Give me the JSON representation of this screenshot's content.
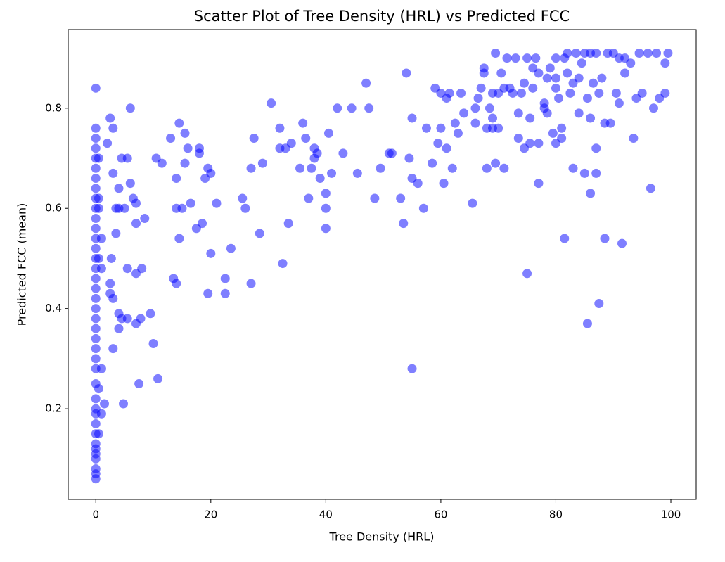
{
  "chart_data": {
    "type": "scatter",
    "title": "Scatter Plot of Tree Density (HRL) vs Predicted FCC",
    "x_label": "Tree Density (HRL)",
    "y_label": "Predicted FCC (mean)",
    "color": "#0000ff",
    "alpha": 0.5,
    "grid": false,
    "xlim": [
      -4.8,
      104.4
    ],
    "ylim": [
      0.019,
      0.957
    ],
    "xticks": [
      0,
      20,
      40,
      60,
      80,
      100
    ],
    "yticks": [
      0.2,
      0.4,
      0.6,
      0.8
    ],
    "x": [
      0,
      0,
      0,
      0,
      0,
      0,
      0,
      0,
      0,
      0,
      0,
      0,
      0,
      0,
      0,
      0,
      0,
      0,
      0,
      0,
      0,
      0,
      0,
      0,
      0,
      0,
      0,
      0,
      0,
      0,
      0,
      0,
      0,
      0,
      0,
      0,
      0,
      0,
      0,
      0.5,
      0.5,
      0.5,
      0.5,
      0.5,
      0.5,
      1.5,
      1,
      1,
      1,
      1,
      2,
      2.5,
      2.5,
      2.5,
      3,
      3,
      2.7,
      3,
      3,
      3.5,
      3.5,
      4,
      4,
      4,
      4.5,
      4.5,
      4,
      4.8,
      5,
      5.5,
      5.5,
      5.5,
      6,
      6,
      6.5,
      7,
      7,
      7,
      7,
      7.5,
      7.8,
      8,
      8.5,
      9.5,
      10,
      10.5,
      10.8,
      11.5,
      13,
      13.5,
      14,
      14,
      14.5,
      14,
      14.5,
      15,
      15.5,
      15.5,
      16,
      16.5,
      17.5,
      18,
      18,
      18.5,
      19,
      19.5,
      19.5,
      20,
      20,
      21,
      22.5,
      22.5,
      23.5,
      25.5,
      26,
      27,
      27,
      27.5,
      28.5,
      29,
      30.5,
      32,
      32,
      32.5,
      33,
      33.5,
      34,
      35.5,
      36,
      36.5,
      37,
      37.5,
      38,
      38,
      38.5,
      39,
      40,
      40,
      40,
      40.5,
      41,
      42,
      43,
      44.5,
      45.5,
      47,
      47.5,
      48.5,
      49.5,
      51,
      51.5,
      53,
      53.5,
      54,
      54.5,
      55,
      55,
      55,
      56,
      57,
      57.5,
      58.5,
      59,
      59.5,
      60,
      60,
      60.5,
      61,
      61,
      61.5,
      62,
      62.5,
      63,
      63.5,
      64,
      65.5,
      66,
      66,
      66.5,
      67,
      67.5,
      67.5,
      68,
      68,
      68.5,
      69,
      69,
      69,
      69.5,
      69.5,
      70,
      70,
      70.5,
      71,
      71,
      71.5,
      72,
      72.5,
      73,
      73.5,
      73.5,
      74,
      74.5,
      74.5,
      75,
      75,
      75.5,
      75.5,
      76,
      76,
      76.5,
      77,
      77,
      77,
      78,
      78,
      78.5,
      78.5,
      79,
      79.5,
      80,
      80,
      80,
      80,
      80.5,
      81,
      81,
      81.5,
      81.5,
      82,
      82,
      82.5,
      83,
      83,
      83.5,
      84,
      84,
      84.5,
      85,
      85,
      85.5,
      85.5,
      86,
      86,
      86,
      86.5,
      87,
      87,
      87,
      87.5,
      87.5,
      88,
      88.5,
      88.5,
      89,
      89.5,
      90,
      90.5,
      91,
      91,
      91.5,
      92,
      92,
      93,
      93.5,
      94,
      94.5,
      95,
      96,
      96.5,
      97,
      97.5,
      98,
      99,
      99,
      99.5
    ],
    "values": [
      0.06,
      0.07,
      0.08,
      0.1,
      0.11,
      0.12,
      0.13,
      0.15,
      0.17,
      0.19,
      0.2,
      0.22,
      0.25,
      0.28,
      0.3,
      0.32,
      0.34,
      0.36,
      0.38,
      0.4,
      0.42,
      0.44,
      0.46,
      0.48,
      0.5,
      0.52,
      0.54,
      0.56,
      0.58,
      0.6,
      0.62,
      0.64,
      0.66,
      0.68,
      0.7,
      0.72,
      0.74,
      0.76,
      0.84,
      0.24,
      0.5,
      0.6,
      0.15,
      0.62,
      0.7,
      0.21,
      0.28,
      0.48,
      0.54,
      0.19,
      0.73,
      0.43,
      0.45,
      0.78,
      0.76,
      0.42,
      0.5,
      0.67,
      0.32,
      0.55,
      0.6,
      0.6,
      0.36,
      0.39,
      0.38,
      0.7,
      0.64,
      0.21,
      0.6,
      0.7,
      0.48,
      0.38,
      0.8,
      0.65,
      0.62,
      0.57,
      0.47,
      0.37,
      0.61,
      0.25,
      0.38,
      0.48,
      0.58,
      0.39,
      0.33,
      0.7,
      0.26,
      0.69,
      0.74,
      0.46,
      0.45,
      0.66,
      0.77,
      0.6,
      0.54,
      0.6,
      0.69,
      0.75,
      0.72,
      0.61,
      0.56,
      0.72,
      0.71,
      0.57,
      0.66,
      0.43,
      0.68,
      0.51,
      0.67,
      0.61,
      0.43,
      0.46,
      0.52,
      0.62,
      0.6,
      0.45,
      0.68,
      0.74,
      0.55,
      0.69,
      0.81,
      0.76,
      0.72,
      0.49,
      0.72,
      0.57,
      0.73,
      0.68,
      0.77,
      0.74,
      0.62,
      0.68,
      0.7,
      0.72,
      0.71,
      0.66,
      0.6,
      0.63,
      0.56,
      0.75,
      0.67,
      0.8,
      0.71,
      0.8,
      0.67,
      0.85,
      0.8,
      0.62,
      0.68,
      0.71,
      0.71,
      0.62,
      0.57,
      0.87,
      0.7,
      0.66,
      0.78,
      0.28,
      0.65,
      0.6,
      0.76,
      0.69,
      0.84,
      0.73,
      0.83,
      0.76,
      0.65,
      0.72,
      0.82,
      0.83,
      0.68,
      0.77,
      0.75,
      0.83,
      0.79,
      0.61,
      0.8,
      0.77,
      0.82,
      0.84,
      0.88,
      0.87,
      0.76,
      0.68,
      0.8,
      0.78,
      0.83,
      0.76,
      0.69,
      0.91,
      0.76,
      0.83,
      0.87,
      0.68,
      0.84,
      0.9,
      0.84,
      0.83,
      0.9,
      0.74,
      0.79,
      0.83,
      0.72,
      0.85,
      0.9,
      0.47,
      0.73,
      0.78,
      0.88,
      0.84,
      0.9,
      0.73,
      0.65,
      0.87,
      0.81,
      0.8,
      0.86,
      0.79,
      0.88,
      0.75,
      0.84,
      0.9,
      0.86,
      0.73,
      0.82,
      0.74,
      0.76,
      0.9,
      0.54,
      0.87,
      0.91,
      0.83,
      0.85,
      0.68,
      0.91,
      0.79,
      0.86,
      0.89,
      0.67,
      0.91,
      0.82,
      0.37,
      0.63,
      0.78,
      0.91,
      0.85,
      0.67,
      0.72,
      0.91,
      0.41,
      0.83,
      0.86,
      0.54,
      0.77,
      0.91,
      0.77,
      0.91,
      0.83,
      0.81,
      0.9,
      0.53,
      0.87,
      0.9,
      0.89,
      0.74,
      0.82,
      0.91,
      0.83,
      0.91,
      0.64,
      0.8,
      0.91,
      0.82,
      0.83,
      0.89,
      0.91
    ]
  }
}
